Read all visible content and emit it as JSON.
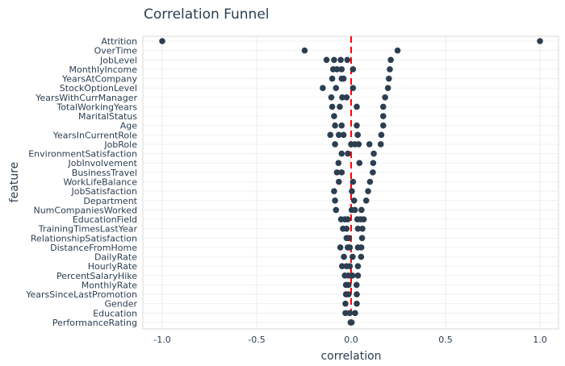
{
  "chart_data": {
    "type": "scatter",
    "title": "Correlation Funnel",
    "xlabel": "correlation",
    "ylabel": "feature",
    "xlim": [
      -1.1,
      1.1
    ],
    "xticks": [
      -1.0,
      -0.5,
      0.0,
      0.5,
      1.0
    ],
    "xtick_labels": [
      "-1.0",
      "-0.5",
      "0.0",
      "0.5",
      "1.0"
    ],
    "reference_line": 0,
    "grid": true,
    "colors": {
      "point": "#2c3e50",
      "reference": "#ff0000",
      "grid": "#ebebeb",
      "border": "#d9d9d9"
    },
    "features": [
      {
        "name": "Attrition",
        "values": [
          -1.0,
          1.0
        ]
      },
      {
        "name": "OverTime",
        "values": [
          -0.246,
          0.246
        ]
      },
      {
        "name": "JobLevel",
        "values": [
          -0.13,
          -0.09,
          -0.055,
          -0.02,
          0.21
        ]
      },
      {
        "name": "MonthlyIncome",
        "values": [
          -0.095,
          -0.075,
          -0.05,
          0.01,
          0.205
        ]
      },
      {
        "name": "YearsAtCompany",
        "values": [
          -0.1,
          -0.05,
          -0.04,
          0.2
        ]
      },
      {
        "name": "StockOptionLevel",
        "values": [
          -0.15,
          -0.08,
          0.01,
          0.195
        ]
      },
      {
        "name": "YearsWithCurrManager",
        "values": [
          -0.105,
          -0.047,
          -0.024,
          0.18
        ]
      },
      {
        "name": "TotalWorkingYears",
        "values": [
          -0.1,
          -0.06,
          0.03,
          0.17
        ]
      },
      {
        "name": "MaritalStatus",
        "values": [
          -0.09,
          0.17
        ]
      },
      {
        "name": "Age",
        "values": [
          -0.085,
          -0.05,
          0.03,
          0.17
        ]
      },
      {
        "name": "YearsInCurrentRole",
        "values": [
          -0.11,
          -0.065,
          -0.04,
          0.035,
          0.16
        ]
      },
      {
        "name": "JobRole",
        "values": [
          -0.085,
          0.0,
          0.02,
          0.04,
          0.097,
          0.157
        ]
      },
      {
        "name": "EnvironmentSatisfaction",
        "values": [
          -0.05,
          -0.017,
          0.12
        ]
      },
      {
        "name": "JobInvolvement",
        "values": [
          -0.067,
          0.044,
          0.117
        ]
      },
      {
        "name": "BusinessTravel",
        "values": [
          -0.075,
          -0.05,
          0.115
        ]
      },
      {
        "name": "WorkLifeBalance",
        "values": [
          -0.065,
          0.01,
          0.1
        ]
      },
      {
        "name": "JobSatisfaction",
        "values": [
          -0.09,
          0.004,
          0.09
        ]
      },
      {
        "name": "Department",
        "values": [
          -0.085,
          0.016,
          0.08
        ]
      },
      {
        "name": "NumCompaniesWorked",
        "values": [
          -0.08,
          0.003,
          0.02,
          0.055
        ]
      },
      {
        "name": "EducationField",
        "values": [
          -0.053,
          -0.033,
          -0.018,
          0.033,
          0.05,
          0.067
        ]
      },
      {
        "name": "TrainingTimesLastYear",
        "values": [
          -0.043,
          -0.024,
          0.036,
          0.06
        ]
      },
      {
        "name": "RelationshipSatisfaction",
        "values": [
          -0.024,
          -0.013,
          0.058
        ]
      },
      {
        "name": "DistanceFromHome",
        "values": [
          -0.057,
          -0.018,
          -0.007,
          0.036,
          0.054
        ]
      },
      {
        "name": "DailyRate",
        "values": [
          -0.038,
          0.008,
          0.053
        ]
      },
      {
        "name": "HourlyRate",
        "values": [
          -0.048,
          -0.024,
          -0.007,
          0.036
        ]
      },
      {
        "name": "PercentSalaryHike",
        "values": [
          -0.033,
          -0.014,
          0.007,
          0.036
        ]
      },
      {
        "name": "MonthlyRate",
        "values": [
          -0.027,
          -0.014,
          0.029
        ]
      },
      {
        "name": "YearsSinceLastPromotion",
        "values": [
          -0.027,
          -0.014,
          0.03
        ]
      },
      {
        "name": "Gender",
        "values": [
          -0.03,
          0.03
        ]
      },
      {
        "name": "Education",
        "values": [
          -0.03,
          -0.007,
          0.021
        ]
      },
      {
        "name": "PerformanceRating",
        "values": [
          -0.003,
          0.003
        ]
      }
    ]
  }
}
